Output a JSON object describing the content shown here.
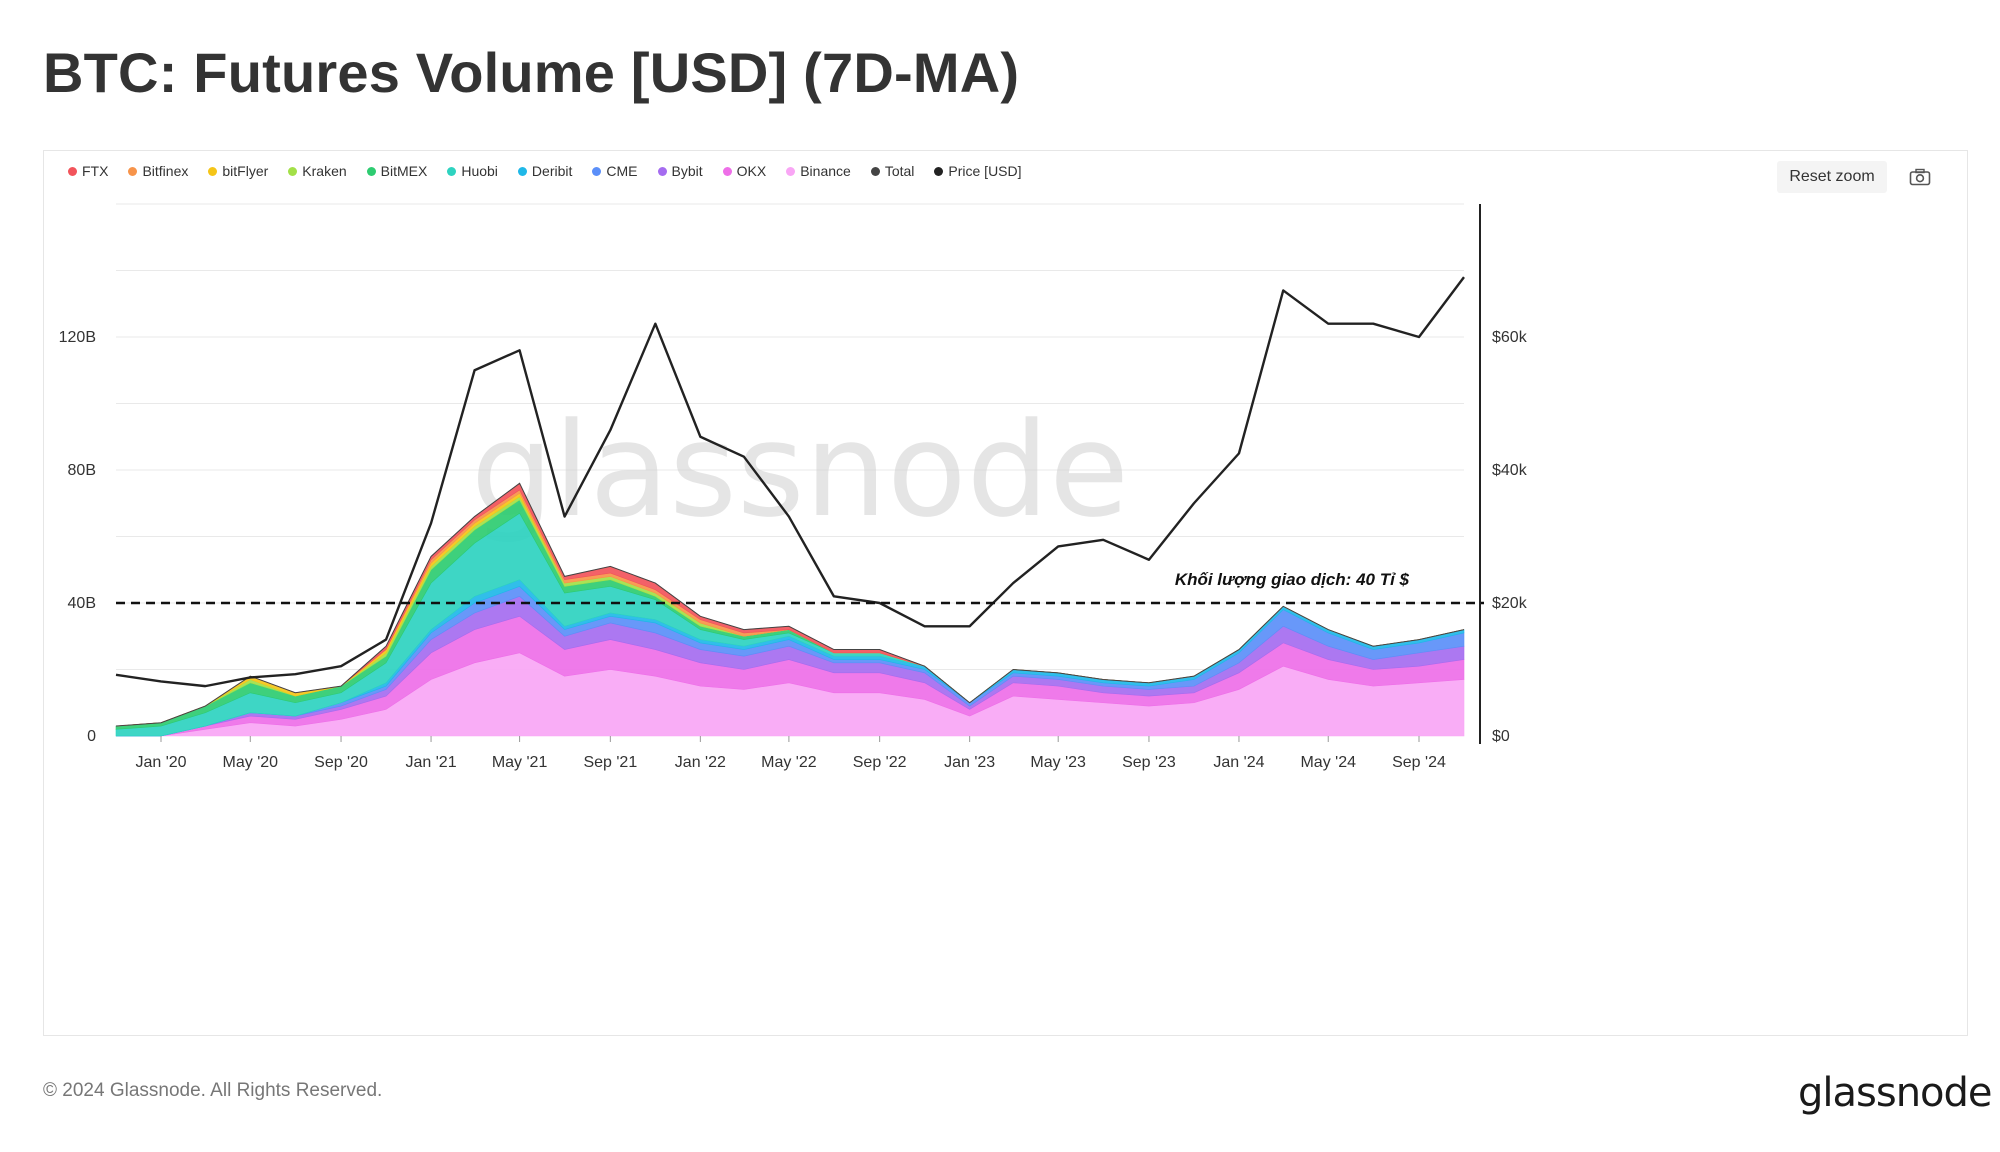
{
  "title": "BTC: Futures Volume [USD] (7D-MA)",
  "toolbar": {
    "reset_zoom_label": "Reset zoom",
    "camera_icon": "camera-icon"
  },
  "footer": {
    "copyright": "© 2024 Glassnode. All Rights Reserved.",
    "logo_text": "glassnode"
  },
  "watermark": "glassnode",
  "legend": [
    {
      "name": "FTX",
      "color": "#f2545b"
    },
    {
      "name": "Bitfinex",
      "color": "#f7944a"
    },
    {
      "name": "bitFlyer",
      "color": "#f5c518"
    },
    {
      "name": "Kraken",
      "color": "#a3e048"
    },
    {
      "name": "BitMEX",
      "color": "#2ecc71"
    },
    {
      "name": "Huobi",
      "color": "#2ed3c0"
    },
    {
      "name": "Deribit",
      "color": "#1fb8e8"
    },
    {
      "name": "CME",
      "color": "#5b8ff9"
    },
    {
      "name": "Bybit",
      "color": "#a56cf0"
    },
    {
      "name": "OKX",
      "color": "#ee6fe8"
    },
    {
      "name": "Binance",
      "color": "#f9a6f5"
    },
    {
      "name": "Total",
      "color": "#444444"
    },
    {
      "name": "Price [USD]",
      "color": "#222222"
    }
  ],
  "chart_data": {
    "type": "area",
    "stacked": true,
    "title": "BTC: Futures Volume [USD] (7D-MA)",
    "x_tick_labels": [
      "Jan '20",
      "May '20",
      "Sep '20",
      "Jan '21",
      "May '21",
      "Sep '21",
      "Jan '22",
      "May '22",
      "Sep '22",
      "Jan '23",
      "May '23",
      "Sep '23",
      "Jan '24",
      "May '24",
      "Sep '24"
    ],
    "x_range": [
      "2019-11-01",
      "2024-11-01"
    ],
    "y_left": {
      "ticks": [
        0,
        40,
        80,
        120
      ],
      "tick_labels": [
        "0",
        "40B",
        "80B",
        "120B"
      ],
      "range": [
        0,
        160
      ],
      "unit": "B USD"
    },
    "y_right": {
      "ticks": [
        0,
        20,
        40,
        60
      ],
      "tick_labels": [
        "$0",
        "$20k",
        "$40k",
        "$60k"
      ],
      "range": [
        0,
        80
      ],
      "unit": "k USD"
    },
    "grid": true,
    "legend_position": "top-left",
    "dates": [
      "2019-11-01",
      "2020-01-01",
      "2020-03-01",
      "2020-05-01",
      "2020-07-01",
      "2020-09-01",
      "2020-11-01",
      "2021-01-01",
      "2021-03-01",
      "2021-05-01",
      "2021-07-01",
      "2021-09-01",
      "2021-11-01",
      "2022-01-01",
      "2022-03-01",
      "2022-05-01",
      "2022-07-01",
      "2022-09-01",
      "2022-11-01",
      "2023-01-01",
      "2023-03-01",
      "2023-05-01",
      "2023-07-01",
      "2023-09-01",
      "2023-11-01",
      "2024-01-01",
      "2024-03-01",
      "2024-05-01",
      "2024-07-01",
      "2024-09-01",
      "2024-11-01"
    ],
    "series": [
      {
        "name": "Binance",
        "color": "#f9a6f5",
        "values": [
          0,
          0,
          2,
          4,
          3,
          5,
          8,
          17,
          22,
          25,
          18,
          20,
          18,
          15,
          14,
          16,
          13,
          13,
          11,
          6,
          12,
          11,
          10,
          9,
          10,
          14,
          21,
          17,
          15,
          16,
          17
        ]
      },
      {
        "name": "OKX",
        "color": "#ee6fe8",
        "values": [
          0,
          0,
          1,
          2,
          2,
          3,
          4,
          8,
          10,
          11,
          8,
          9,
          8,
          7,
          6,
          7,
          6,
          6,
          5,
          2,
          4,
          4,
          3,
          3,
          3,
          5,
          7,
          6,
          5,
          5,
          6
        ]
      },
      {
        "name": "Bybit",
        "color": "#a56cf0",
        "values": [
          0,
          0,
          0,
          1,
          1,
          1,
          2,
          4,
          5,
          6,
          4,
          5,
          5,
          4,
          4,
          4,
          3,
          3,
          3,
          1,
          2,
          2,
          2,
          2,
          2,
          3,
          5,
          4,
          3,
          4,
          4
        ]
      },
      {
        "name": "CME",
        "color": "#5b8ff9",
        "values": [
          0,
          0,
          0,
          0,
          0,
          1,
          1,
          2,
          3,
          3,
          2,
          2,
          3,
          2,
          2,
          2,
          1,
          1,
          1,
          1,
          1,
          1,
          1,
          1,
          2,
          3,
          5,
          4,
          3,
          3,
          4
        ]
      },
      {
        "name": "Deribit",
        "color": "#1fb8e8",
        "values": [
          0,
          0,
          0,
          0,
          0,
          0,
          1,
          1,
          2,
          2,
          1,
          1,
          1,
          1,
          1,
          1,
          1,
          1,
          1,
          0,
          1,
          1,
          1,
          1,
          1,
          1,
          1,
          1,
          1,
          1,
          1
        ]
      },
      {
        "name": "Huobi",
        "color": "#2ed3c0",
        "values": [
          2,
          3,
          4,
          6,
          4,
          3,
          6,
          14,
          16,
          20,
          10,
          8,
          6,
          3,
          2,
          1,
          1,
          1,
          0,
          0,
          0,
          0,
          0,
          0,
          0,
          0,
          0,
          0,
          0,
          0,
          0
        ]
      },
      {
        "name": "BitMEX",
        "color": "#2ecc71",
        "values": [
          1,
          1,
          2,
          3,
          2,
          2,
          2,
          4,
          4,
          4,
          2,
          2,
          1,
          1,
          1,
          1,
          0,
          0,
          0,
          0,
          0,
          0,
          0,
          0,
          0,
          0,
          0,
          0,
          0,
          0,
          0
        ]
      },
      {
        "name": "Kraken",
        "color": "#a3e048",
        "values": [
          0,
          0,
          0,
          1,
          0,
          0,
          1,
          1,
          1,
          1,
          1,
          1,
          1,
          1,
          0,
          0,
          0,
          0,
          0,
          0,
          0,
          0,
          0,
          0,
          0,
          0,
          0,
          0,
          0,
          0,
          0
        ]
      },
      {
        "name": "bitFlyer",
        "color": "#f5c518",
        "values": [
          0,
          0,
          0,
          1,
          1,
          0,
          1,
          1,
          1,
          1,
          0,
          0,
          0,
          0,
          0,
          0,
          0,
          0,
          0,
          0,
          0,
          0,
          0,
          0,
          0,
          0,
          0,
          0,
          0,
          0,
          0
        ]
      },
      {
        "name": "Bitfinex",
        "color": "#f7944a",
        "values": [
          0,
          0,
          0,
          0,
          0,
          0,
          0,
          1,
          1,
          1,
          1,
          1,
          1,
          1,
          1,
          0,
          0,
          0,
          0,
          0,
          0,
          0,
          0,
          0,
          0,
          0,
          0,
          0,
          0,
          0,
          0
        ]
      },
      {
        "name": "FTX",
        "color": "#f2545b",
        "values": [
          0,
          0,
          0,
          0,
          0,
          0,
          1,
          1,
          1,
          2,
          1,
          2,
          2,
          1,
          1,
          1,
          1,
          1,
          0,
          0,
          0,
          0,
          0,
          0,
          0,
          0,
          0,
          0,
          0,
          0,
          0
        ]
      }
    ],
    "price_series": {
      "name": "Price [USD]",
      "axis": "right",
      "color": "#222222",
      "values": [
        9.2,
        8.2,
        7.5,
        8.8,
        9.3,
        10.5,
        14.5,
        32,
        55,
        58,
        33,
        46,
        62,
        45,
        42,
        33,
        21,
        20,
        16.5,
        16.5,
        23,
        28.5,
        29.5,
        26.5,
        35,
        42.5,
        67,
        62,
        62,
        60,
        69
      ]
    },
    "reference_line": {
      "value": 40,
      "label": "Khối lượng giao dịch: 40 Tỉ $",
      "style": "dashed"
    }
  }
}
